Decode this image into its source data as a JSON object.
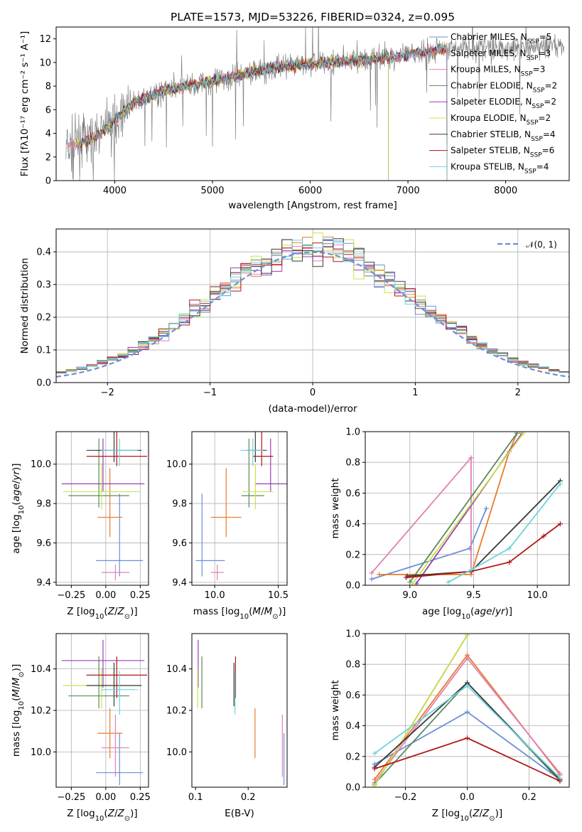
{
  "figure_title": "PLATE=1573, MJD=53226, FIBERID=0324, z=0.095",
  "colors": {
    "Chabrier MILES": "#6b8fd8",
    "Salpeter MILES": "#e97a2a",
    "Kroupa MILES": "#e27fb6",
    "Chabrier ELODIE": "#5b8a5b",
    "Salpeter ELODIE": "#9a3fb3",
    "Kroupa ELODIE": "#c9e34a",
    "Chabrier STELIB": "#3a3a3a",
    "Salpeter STELIB": "#b01818",
    "Kroupa STELIB": "#6fd3dd",
    "data": "#808080"
  },
  "chart_data": [
    {
      "id": "spectrum",
      "type": "line",
      "xlabel": "wavelength [Angstrom, rest frame]",
      "ylabel": "Flux [fλ10⁻¹⁷ erg cm⁻² s⁻¹ A⁻¹]",
      "xlim": [
        3400,
        8650
      ],
      "ylim": [
        0,
        13
      ],
      "xticks": [
        4000,
        5000,
        6000,
        7000,
        8000
      ],
      "yticks": [
        0,
        2,
        4,
        6,
        8,
        10,
        12
      ],
      "legend_position": "top-right",
      "legend": [
        {
          "name": "Chabrier MILES",
          "label": "Chabrier MILES, N",
          "sub": "SSP",
          "eq": "=5"
        },
        {
          "name": "Salpeter MILES",
          "label": "Salpeter MILES, N",
          "sub": "SSP",
          "eq": "=3"
        },
        {
          "name": "Kroupa MILES",
          "label": "Kroupa MILES, N",
          "sub": "SSP",
          "eq": "=3"
        },
        {
          "name": "Chabrier ELODIE",
          "label": "Chabrier ELODIE, N",
          "sub": "SSP",
          "eq": "=2"
        },
        {
          "name": "Salpeter ELODIE",
          "label": "Salpeter ELODIE, N",
          "sub": "SSP",
          "eq": "=2"
        },
        {
          "name": "Kroupa ELODIE",
          "label": "Kroupa ELODIE, N",
          "sub": "SSP",
          "eq": "=2"
        },
        {
          "name": "Chabrier STELIB",
          "label": "Chabrier STELIB, N",
          "sub": "SSP",
          "eq": "=4"
        },
        {
          "name": "Salpeter STELIB",
          "label": "Salpeter STELIB, N",
          "sub": "SSP",
          "eq": "=6"
        },
        {
          "name": "Kroupa STELIB",
          "label": "Kroupa STELIB, N",
          "sub": "SSP",
          "eq": "=4"
        }
      ],
      "continuum": {
        "x": [
          3500,
          3800,
          4000,
          4200,
          4500,
          5000,
          5500,
          6000,
          6500,
          7000,
          7400,
          8600
        ],
        "y": [
          2.8,
          3.6,
          5.2,
          6.6,
          7.6,
          8.4,
          9.4,
          9.9,
          10.2,
          10.6,
          11.2,
          11.3
        ]
      },
      "data_range": [
        3500,
        8600
      ],
      "model_ranges": {
        "MILES": [
          3520,
          7400
        ],
        "ELODIE": [
          3600,
          6800
        ],
        "STELIB": [
          3650,
          7400
        ]
      }
    },
    {
      "id": "residuals",
      "type": "line",
      "xlabel": "(data-model)/error",
      "ylabel": "Normed distribution",
      "xlim": [
        -2.5,
        2.5
      ],
      "ylim": [
        0,
        0.47
      ],
      "xticks": [
        -2,
        -1,
        0,
        1,
        2
      ],
      "yticks": [
        0.0,
        0.1,
        0.2,
        0.3,
        0.4
      ],
      "legend_position": "top-right",
      "reference": {
        "label": "𝒩(0, 1)",
        "mean": 0,
        "sigma": 1
      },
      "bin_width": 0.1
    },
    {
      "id": "z-age",
      "type": "scatter",
      "xlabel": "Z [log₁₀(Z/Z⊙)]",
      "ylabel": "age  [log₁₀(age/yr)]",
      "xlim": [
        -0.36,
        0.31
      ],
      "ylim": [
        9.385,
        10.165
      ],
      "xticks": [
        -0.25,
        0.0,
        0.25
      ],
      "yticks": [
        9.4,
        9.6,
        9.8,
        10.0
      ]
    },
    {
      "id": "mass-age",
      "type": "scatter",
      "xlabel": "mass [log₁₀(M/M⊙)]",
      "ylabel": "",
      "xlim": [
        9.82,
        10.57
      ],
      "ylim": [
        9.385,
        10.165
      ],
      "xticks": [
        9.5,
        10.0,
        10.5
      ],
      "yticks": [
        9.4,
        9.6,
        9.8,
        10.0
      ]
    },
    {
      "id": "age-weight",
      "type": "line",
      "xlabel": "age  [log₁₀(age/yr)]",
      "ylabel": "mass weight",
      "xlim": [
        8.65,
        10.25
      ],
      "ylim": [
        0,
        1
      ],
      "xticks": [
        9.0,
        9.5,
        10.0
      ],
      "yticks": [
        0.0,
        0.2,
        0.4,
        0.6,
        0.8,
        1.0
      ],
      "series": [
        {
          "name": "Chabrier MILES",
          "x": [
            8.7,
            9.47,
            9.6
          ],
          "y": [
            0.04,
            0.24,
            0.5
          ]
        },
        {
          "name": "Salpeter MILES",
          "x": [
            8.76,
            9.48,
            9.78,
            9.84
          ],
          "y": [
            0.07,
            0.07,
            0.87,
            0.99
          ]
        },
        {
          "name": "Kroupa MILES",
          "x": [
            8.7,
            9.48,
            9.48
          ],
          "y": [
            0.08,
            0.83,
            0.09
          ]
        },
        {
          "name": "Chabrier ELODIE",
          "x": [
            9.0,
            9.84
          ],
          "y": [
            0.02,
            0.99
          ]
        },
        {
          "name": "Salpeter ELODIE",
          "x": [
            9.05,
            9.88
          ],
          "y": [
            0.01,
            0.99
          ]
        },
        {
          "name": "Kroupa ELODIE",
          "x": [
            9.02,
            9.89
          ],
          "y": [
            0.01,
            0.99
          ]
        },
        {
          "name": "Chabrier STELIB",
          "x": [
            8.98,
            9.48,
            10.18
          ],
          "y": [
            0.06,
            0.09,
            0.68
          ]
        },
        {
          "name": "Salpeter STELIB",
          "x": [
            8.97,
            9.48,
            9.78,
            10.05,
            10.18
          ],
          "y": [
            0.05,
            0.09,
            0.15,
            0.32,
            0.4
          ]
        },
        {
          "name": "Kroupa STELIB",
          "x": [
            9.3,
            9.48,
            9.78,
            10.18
          ],
          "y": [
            0.02,
            0.1,
            0.24,
            0.66
          ]
        }
      ]
    },
    {
      "id": "z-mass",
      "type": "scatter",
      "xlabel": "Z [log₁₀(Z/Z⊙)]",
      "ylabel": "mass [log₁₀(M/M⊙)]",
      "xlim": [
        -0.36,
        0.31
      ],
      "ylim": [
        9.83,
        10.57
      ],
      "xticks": [
        -0.25,
        0.0,
        0.25
      ],
      "yticks": [
        10.0,
        10.2,
        10.4
      ]
    },
    {
      "id": "ebv-mass",
      "type": "scatter",
      "xlabel": "E(B-V)",
      "ylabel": "",
      "xlim": [
        0.093,
        0.274
      ],
      "ylim": [
        9.83,
        10.57
      ],
      "xticks": [
        0.1,
        0.2
      ],
      "yticks": [
        10.0,
        10.2,
        10.4
      ]
    },
    {
      "id": "z-weight",
      "type": "line",
      "xlabel": "Z [log₁₀(Z/Z⊙)]",
      "ylabel": "mass weight",
      "xlim": [
        -0.33,
        0.33
      ],
      "ylim": [
        0,
        1
      ],
      "xticks": [
        -0.2,
        0.0,
        0.2
      ],
      "yticks": [
        0.0,
        0.2,
        0.4,
        0.6,
        0.8,
        1.0
      ],
      "series": [
        {
          "name": "Chabrier MILES",
          "x": [
            -0.3,
            0.0,
            0.3
          ],
          "y": [
            0.15,
            0.49,
            0.05
          ]
        },
        {
          "name": "Salpeter MILES",
          "x": [
            -0.3,
            0.0,
            0.3
          ],
          "y": [
            0.05,
            0.86,
            0.08
          ]
        },
        {
          "name": "Kroupa MILES",
          "x": [
            -0.3,
            0.0,
            0.3
          ],
          "y": [
            0.03,
            0.84,
            0.09
          ]
        },
        {
          "name": "Chabrier ELODIE",
          "x": [
            -0.3,
            0.0,
            0.3
          ],
          "y": [
            0.02,
            0.68,
            0.04
          ]
        },
        {
          "name": "Salpeter ELODIE",
          "x": [
            -0.3,
            0.0
          ],
          "y": [
            0.01,
            0.99
          ]
        },
        {
          "name": "Kroupa ELODIE",
          "x": [
            -0.3,
            0.0
          ],
          "y": [
            0.01,
            0.99
          ]
        },
        {
          "name": "Chabrier STELIB",
          "x": [
            -0.3,
            0.0,
            0.3
          ],
          "y": [
            0.13,
            0.68,
            0.05
          ]
        },
        {
          "name": "Salpeter STELIB",
          "x": [
            -0.3,
            0.0,
            0.3
          ],
          "y": [
            0.12,
            0.32,
            0.04
          ]
        },
        {
          "name": "Kroupa STELIB",
          "x": [
            -0.3,
            0.0,
            0.3
          ],
          "y": [
            0.22,
            0.66,
            0.06
          ]
        }
      ]
    }
  ],
  "fits": [
    {
      "name": "Chabrier MILES",
      "Z": 0.1,
      "Zerr": 0.17,
      "age": 9.51,
      "ageErr": [
        0.08,
        0.34
      ],
      "mass": 9.9,
      "massErr": [
        0.05,
        0.18
      ],
      "ebv": 0.268,
      "mErr2": [
        10.09,
        9.84
      ]
    },
    {
      "name": "Salpeter MILES",
      "Z": 0.03,
      "Zerr": 0.09,
      "age": 9.73,
      "ageErr": [
        0.1,
        0.25
      ],
      "mass": 10.09,
      "massErr": [
        0.12,
        0.12
      ],
      "ebv": 0.213,
      "mErr2": [
        10.21,
        9.97
      ]
    },
    {
      "name": "Kroupa MILES",
      "Z": 0.07,
      "Zerr": 0.1,
      "age": 9.45,
      "ageErr": [
        0.04,
        0.04
      ],
      "mass": 10.02,
      "massErr": [
        0.05,
        0.05
      ],
      "ebv": 0.265,
      "mErr2": [
        10.18,
        9.88
      ]
    },
    {
      "name": "Chabrier ELODIE",
      "Z": -0.05,
      "Zerr": 0.22,
      "age": 9.84,
      "ageErr": [
        0.06,
        0.29
      ],
      "mass": 10.27,
      "massErr": [
        0.06,
        0.12
      ],
      "ebv": 0.112,
      "mErr2": [
        10.46,
        10.21
      ]
    },
    {
      "name": "Salpeter ELODIE",
      "Z": -0.02,
      "Zerr": 0.3,
      "age": 9.9,
      "ageErr": [
        0.04,
        0.23
      ],
      "mass": 10.44,
      "massErr": [
        0.12,
        0.14
      ],
      "ebv": 0.105,
      "mErr2": [
        10.54,
        10.31
      ]
    },
    {
      "name": "Kroupa ELODIE",
      "Z": -0.03,
      "Zerr": 0.28,
      "age": 9.86,
      "ageErr": [
        0.09,
        0.14
      ],
      "mass": 10.32,
      "massErr": [
        0.1,
        0.14
      ],
      "ebv": 0.104,
      "mErr2": [
        10.4,
        10.21
      ]
    },
    {
      "name": "Chabrier STELIB",
      "Z": 0.06,
      "Zerr": 0.2,
      "age": 10.07,
      "ageErr": [
        0.06,
        0.2
      ],
      "mass": 10.32,
      "massErr": [
        0.07,
        0.09
      ],
      "ebv": 0.173,
      "mErr2": [
        10.43,
        10.22
      ]
    },
    {
      "name": "Salpeter STELIB",
      "Z": 0.08,
      "Zerr": 0.22,
      "age": 10.04,
      "ageErr": [
        0.05,
        0.14
      ],
      "mass": 10.37,
      "massErr": [
        0.07,
        0.09
      ],
      "ebv": 0.176,
      "mErr2": [
        10.46,
        10.26
      ]
    },
    {
      "name": "Kroupa STELIB",
      "Z": 0.1,
      "Zerr": 0.13,
      "age": 10.07,
      "ageErr": [
        0.08,
        0.06
      ],
      "mass": 10.3,
      "massErr": [
        0.1,
        0.08
      ],
      "ebv": 0.175,
      "mErr2": [
        10.39,
        10.18
      ]
    }
  ]
}
